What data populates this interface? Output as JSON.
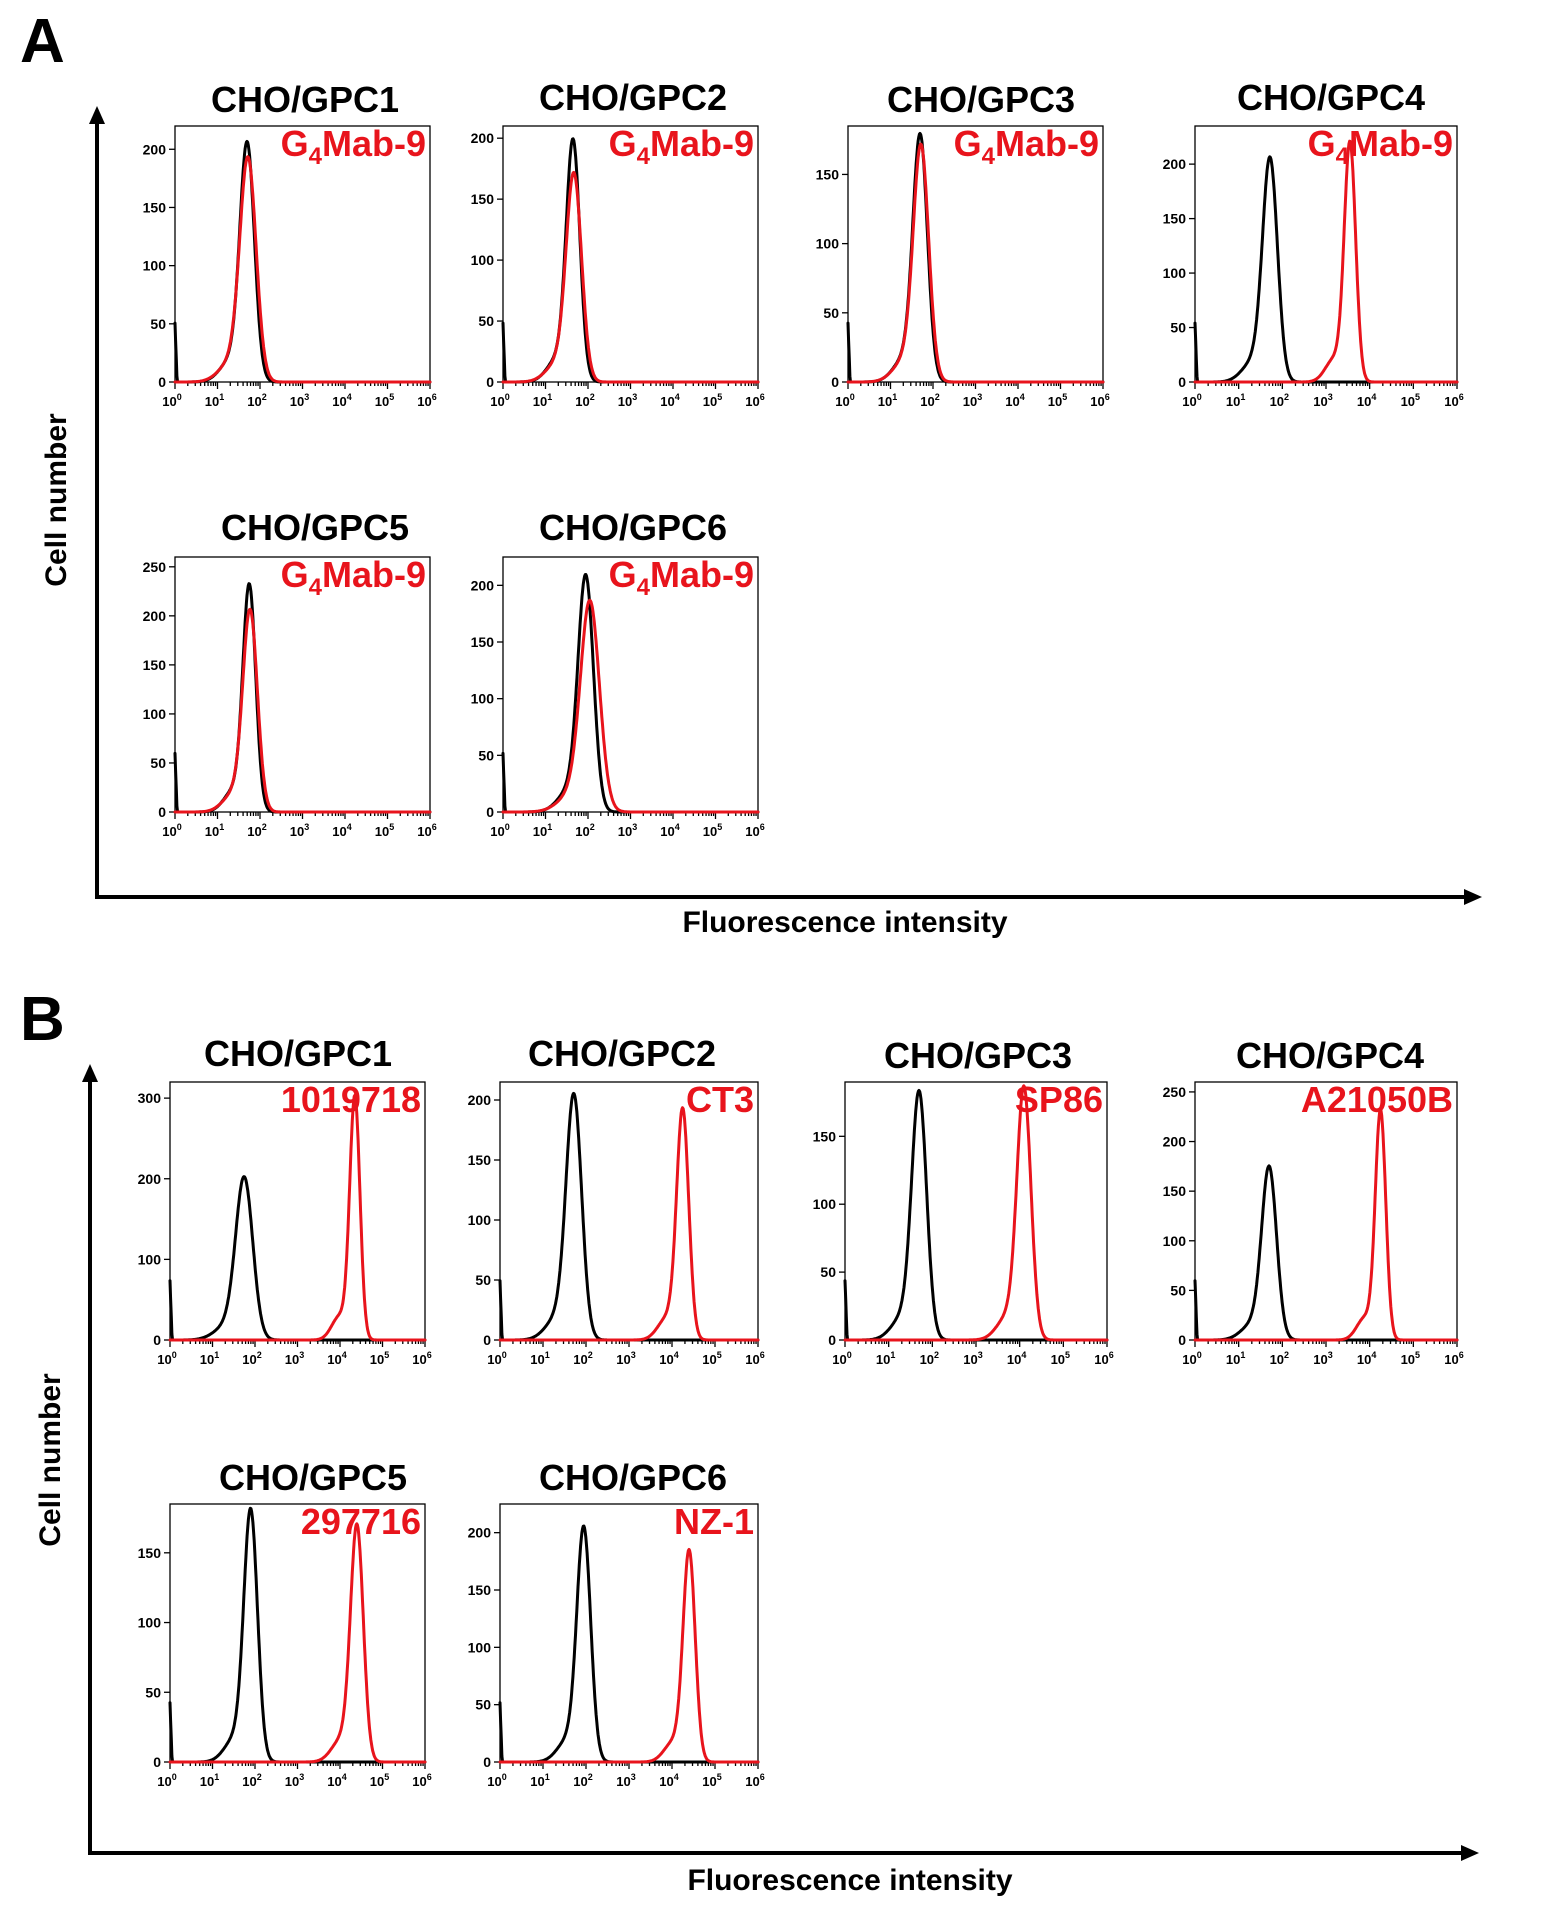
{
  "colors": {
    "control": "#000000",
    "antibody": "#e8141c"
  },
  "panels": [
    {
      "letter": "A",
      "ylabel": "Cell number",
      "xlabel": "Fluorescence intensity",
      "plots": [
        {
          "title": "CHO/GPC1",
          "antibody": {
            "main": "G",
            "sub": "4",
            "rest": "Mab-9"
          },
          "ymax": 220,
          "yticks": [
            0,
            50,
            100,
            150,
            200
          ],
          "peaks": [
            {
              "series": "control",
              "log_center": 1.7,
              "height": 198,
              "width": 0.17
            },
            {
              "series": "antibody",
              "log_center": 1.72,
              "height": 184,
              "width": 0.19
            }
          ]
        },
        {
          "title": "CHO/GPC2",
          "antibody": {
            "main": "G",
            "sub": "4",
            "rest": "Mab-9"
          },
          "ymax": 210,
          "yticks": [
            0,
            50,
            100,
            150,
            200
          ],
          "peaks": [
            {
              "series": "control",
              "log_center": 1.65,
              "height": 192,
              "width": 0.16
            },
            {
              "series": "antibody",
              "log_center": 1.67,
              "height": 164,
              "width": 0.18
            }
          ]
        },
        {
          "title": "CHO/GPC3",
          "antibody": {
            "main": "G",
            "sub": "4",
            "rest": "Mab-9"
          },
          "ymax": 185,
          "yticks": [
            0,
            50,
            100,
            150
          ],
          "peaks": [
            {
              "series": "control",
              "log_center": 1.7,
              "height": 172,
              "width": 0.17
            },
            {
              "series": "antibody",
              "log_center": 1.72,
              "height": 164,
              "width": 0.18
            }
          ]
        },
        {
          "title": "CHO/GPC4",
          "antibody": {
            "main": "G",
            "sub": "4",
            "rest": "Mab-9"
          },
          "ymax": 235,
          "yticks": [
            0,
            50,
            100,
            150,
            200
          ],
          "peaks": [
            {
              "series": "control",
              "log_center": 1.72,
              "height": 198,
              "width": 0.17
            },
            {
              "series": "antibody",
              "log_center": 3.55,
              "height": 216,
              "width": 0.13
            }
          ]
        },
        {
          "title": "CHO/GPC5",
          "antibody": {
            "main": "G",
            "sub": "4",
            "rest": "Mab-9"
          },
          "ymax": 260,
          "yticks": [
            0,
            50,
            100,
            150,
            200,
            250
          ],
          "peaks": [
            {
              "series": "control",
              "log_center": 1.75,
              "height": 225,
              "width": 0.15
            },
            {
              "series": "antibody",
              "log_center": 1.77,
              "height": 198,
              "width": 0.17
            }
          ]
        },
        {
          "title": "CHO/GPC6",
          "antibody": {
            "main": "G",
            "sub": "4",
            "rest": "Mab-9"
          },
          "ymax": 225,
          "yticks": [
            0,
            50,
            100,
            150,
            200
          ],
          "peaks": [
            {
              "series": "control",
              "log_center": 1.95,
              "height": 200,
              "width": 0.18
            },
            {
              "series": "antibody",
              "log_center": 2.05,
              "height": 176,
              "width": 0.22
            }
          ]
        }
      ]
    },
    {
      "letter": "B",
      "ylabel": "Cell number",
      "xlabel": "Fluorescence intensity",
      "plots": [
        {
          "title": "CHO/GPC1",
          "antibody": {
            "main": "1019718",
            "sub": "",
            "rest": ""
          },
          "ymax": 320,
          "yticks": [
            0,
            100,
            200,
            300
          ],
          "peaks": [
            {
              "series": "control",
              "log_center": 1.75,
              "height": 192,
              "width": 0.2
            },
            {
              "series": "antibody",
              "log_center": 4.35,
              "height": 298,
              "width": 0.12
            }
          ]
        },
        {
          "title": "CHO/GPC2",
          "antibody": {
            "main": "CT3",
            "sub": "",
            "rest": ""
          },
          "ymax": 215,
          "yticks": [
            0,
            50,
            100,
            150,
            200
          ],
          "peaks": [
            {
              "series": "control",
              "log_center": 1.72,
              "height": 196,
              "width": 0.18
            },
            {
              "series": "antibody",
              "log_center": 4.25,
              "height": 188,
              "width": 0.14
            }
          ]
        },
        {
          "title": "CHO/GPC3",
          "antibody": {
            "main": "SP86",
            "sub": "",
            "rest": ""
          },
          "ymax": 190,
          "yticks": [
            0,
            50,
            100,
            150
          ],
          "peaks": [
            {
              "series": "control",
              "log_center": 1.7,
              "height": 176,
              "width": 0.17
            },
            {
              "series": "antibody",
              "log_center": 4.1,
              "height": 180,
              "width": 0.16
            }
          ]
        },
        {
          "title": "CHO/GPC4",
          "antibody": {
            "main": "A21050B",
            "sub": "",
            "rest": ""
          },
          "ymax": 260,
          "yticks": [
            0,
            50,
            100,
            150,
            200,
            250
          ],
          "peaks": [
            {
              "series": "control",
              "log_center": 1.7,
              "height": 168,
              "width": 0.17
            },
            {
              "series": "antibody",
              "log_center": 4.25,
              "height": 228,
              "width": 0.12
            }
          ]
        },
        {
          "title": "CHO/GPC5",
          "antibody": {
            "main": "297716",
            "sub": "",
            "rest": ""
          },
          "ymax": 185,
          "yticks": [
            0,
            50,
            100,
            150
          ],
          "peaks": [
            {
              "series": "control",
              "log_center": 1.9,
              "height": 175,
              "width": 0.16
            },
            {
              "series": "antibody",
              "log_center": 4.4,
              "height": 165,
              "width": 0.15
            }
          ]
        },
        {
          "title": "CHO/GPC6",
          "antibody": {
            "main": "NZ-1",
            "sub": "",
            "rest": ""
          },
          "ymax": 225,
          "yticks": [
            0,
            50,
            100,
            150,
            200
          ],
          "peaks": [
            {
              "series": "control",
              "log_center": 1.95,
              "height": 198,
              "width": 0.16
            },
            {
              "series": "antibody",
              "log_center": 4.4,
              "height": 180,
              "width": 0.14
            }
          ]
        }
      ]
    }
  ],
  "chart_data": [
    {
      "type": "line",
      "title": "CHO/GPC1",
      "xscale": "log",
      "xlim": [
        1,
        1000000
      ],
      "ylim": [
        0,
        220
      ],
      "xticks": [
        "10^0",
        "10^1",
        "10^2",
        "10^3",
        "10^4",
        "10^5",
        "10^6"
      ],
      "yticks": [
        0,
        50,
        100,
        150,
        200
      ],
      "series": [
        {
          "color": "#000000",
          "peak_x": 50,
          "peak_y": 198
        },
        {
          "name": "G4Mab-9",
          "color": "#e8141c",
          "peak_x": 52,
          "peak_y": 184
        }
      ]
    },
    {
      "type": "line",
      "title": "CHO/GPC2",
      "xscale": "log",
      "xlim": [
        1,
        1000000
      ],
      "ylim": [
        0,
        210
      ],
      "xticks": [
        "10^0",
        "10^1",
        "10^2",
        "10^3",
        "10^4",
        "10^5",
        "10^6"
      ],
      "yticks": [
        0,
        50,
        100,
        150,
        200
      ],
      "series": [
        {
          "color": "#000000",
          "peak_x": 45,
          "peak_y": 192
        },
        {
          "name": "G4Mab-9",
          "color": "#e8141c",
          "peak_x": 47,
          "peak_y": 164
        }
      ]
    },
    {
      "type": "line",
      "title": "CHO/GPC3",
      "xscale": "log",
      "xlim": [
        1,
        1000000
      ],
      "ylim": [
        0,
        185
      ],
      "xticks": [
        "10^0",
        "10^1",
        "10^2",
        "10^3",
        "10^4",
        "10^5",
        "10^6"
      ],
      "yticks": [
        0,
        50,
        100,
        150
      ],
      "series": [
        {
          "color": "#000000",
          "peak_x": 50,
          "peak_y": 172
        },
        {
          "name": "G4Mab-9",
          "color": "#e8141c",
          "peak_x": 52,
          "peak_y": 164
        }
      ]
    },
    {
      "type": "line",
      "title": "CHO/GPC4",
      "xscale": "log",
      "xlim": [
        1,
        1000000
      ],
      "ylim": [
        0,
        235
      ],
      "xticks": [
        "10^0",
        "10^1",
        "10^2",
        "10^3",
        "10^4",
        "10^5",
        "10^6"
      ],
      "yticks": [
        0,
        50,
        100,
        150,
        200
      ],
      "series": [
        {
          "color": "#000000",
          "peak_x": 52,
          "peak_y": 198
        },
        {
          "name": "G4Mab-9",
          "color": "#e8141c",
          "peak_x": 3500,
          "peak_y": 216
        }
      ]
    },
    {
      "type": "line",
      "title": "CHO/GPC5",
      "xscale": "log",
      "xlim": [
        1,
        1000000
      ],
      "ylim": [
        0,
        260
      ],
      "xticks": [
        "10^0",
        "10^1",
        "10^2",
        "10^3",
        "10^4",
        "10^5",
        "10^6"
      ],
      "yticks": [
        0,
        50,
        100,
        150,
        200,
        250
      ],
      "series": [
        {
          "color": "#000000",
          "peak_x": 56,
          "peak_y": 225
        },
        {
          "name": "G4Mab-9",
          "color": "#e8141c",
          "peak_x": 59,
          "peak_y": 198
        }
      ]
    },
    {
      "type": "line",
      "title": "CHO/GPC6",
      "xscale": "log",
      "xlim": [
        1,
        1000000
      ],
      "ylim": [
        0,
        225
      ],
      "xticks": [
        "10^0",
        "10^1",
        "10^2",
        "10^3",
        "10^4",
        "10^5",
        "10^6"
      ],
      "yticks": [
        0,
        50,
        100,
        150,
        200
      ],
      "series": [
        {
          "color": "#000000",
          "peak_x": 89,
          "peak_y": 200
        },
        {
          "name": "G4Mab-9",
          "color": "#e8141c",
          "peak_x": 112,
          "peak_y": 176
        }
      ]
    },
    {
      "type": "line",
      "title": "CHO/GPC1",
      "xscale": "log",
      "xlim": [
        1,
        1000000
      ],
      "ylim": [
        0,
        320
      ],
      "xticks": [
        "10^0",
        "10^1",
        "10^2",
        "10^3",
        "10^4",
        "10^5",
        "10^6"
      ],
      "yticks": [
        0,
        100,
        200,
        300
      ],
      "series": [
        {
          "color": "#000000",
          "peak_x": 56,
          "peak_y": 192
        },
        {
          "name": "1019718",
          "color": "#e8141c",
          "peak_x": 22000,
          "peak_y": 298
        }
      ]
    },
    {
      "type": "line",
      "title": "CHO/GPC2",
      "xscale": "log",
      "xlim": [
        1,
        1000000
      ],
      "ylim": [
        0,
        215
      ],
      "xticks": [
        "10^0",
        "10^1",
        "10^2",
        "10^3",
        "10^4",
        "10^5",
        "10^6"
      ],
      "yticks": [
        0,
        50,
        100,
        150,
        200
      ],
      "series": [
        {
          "color": "#000000",
          "peak_x": 52,
          "peak_y": 196
        },
        {
          "name": "CT3",
          "color": "#e8141c",
          "peak_x": 18000,
          "peak_y": 188
        }
      ]
    },
    {
      "type": "line",
      "title": "CHO/GPC3",
      "xscale": "log",
      "xlim": [
        1,
        1000000
      ],
      "ylim": [
        0,
        190
      ],
      "xticks": [
        "10^0",
        "10^1",
        "10^2",
        "10^3",
        "10^4",
        "10^5",
        "10^6"
      ],
      "yticks": [
        0,
        50,
        100,
        150
      ],
      "series": [
        {
          "color": "#000000",
          "peak_x": 50,
          "peak_y": 176
        },
        {
          "name": "SP86",
          "color": "#e8141c",
          "peak_x": 12600,
          "peak_y": 180
        }
      ]
    },
    {
      "type": "line",
      "title": "CHO/GPC4",
      "xscale": "log",
      "xlim": [
        1,
        1000000
      ],
      "ylim": [
        0,
        260
      ],
      "xticks": [
        "10^0",
        "10^1",
        "10^2",
        "10^3",
        "10^4",
        "10^5",
        "10^6"
      ],
      "yticks": [
        0,
        50,
        100,
        150,
        200,
        250
      ],
      "series": [
        {
          "color": "#000000",
          "peak_x": 50,
          "peak_y": 168
        },
        {
          "name": "A21050B",
          "color": "#e8141c",
          "peak_x": 18000,
          "peak_y": 228
        }
      ]
    },
    {
      "type": "line",
      "title": "CHO/GPC5",
      "xscale": "log",
      "xlim": [
        1,
        1000000
      ],
      "ylim": [
        0,
        185
      ],
      "xticks": [
        "10^0",
        "10^1",
        "10^2",
        "10^3",
        "10^4",
        "10^5",
        "10^6"
      ],
      "yticks": [
        0,
        50,
        100,
        150
      ],
      "series": [
        {
          "color": "#000000",
          "peak_x": 79,
          "peak_y": 175
        },
        {
          "name": "297716",
          "color": "#e8141c",
          "peak_x": 25000,
          "peak_y": 165
        }
      ]
    },
    {
      "type": "line",
      "title": "CHO/GPC6",
      "xscale": "log",
      "xlim": [
        1,
        1000000
      ],
      "ylim": [
        0,
        225
      ],
      "xticks": [
        "10^0",
        "10^1",
        "10^2",
        "10^3",
        "10^4",
        "10^5",
        "10^6"
      ],
      "yticks": [
        0,
        50,
        100,
        150,
        200
      ],
      "series": [
        {
          "color": "#000000",
          "peak_x": 89,
          "peak_y": 198
        },
        {
          "name": "NZ-1",
          "color": "#e8141c",
          "peak_x": 25000,
          "peak_y": 180
        }
      ]
    }
  ]
}
